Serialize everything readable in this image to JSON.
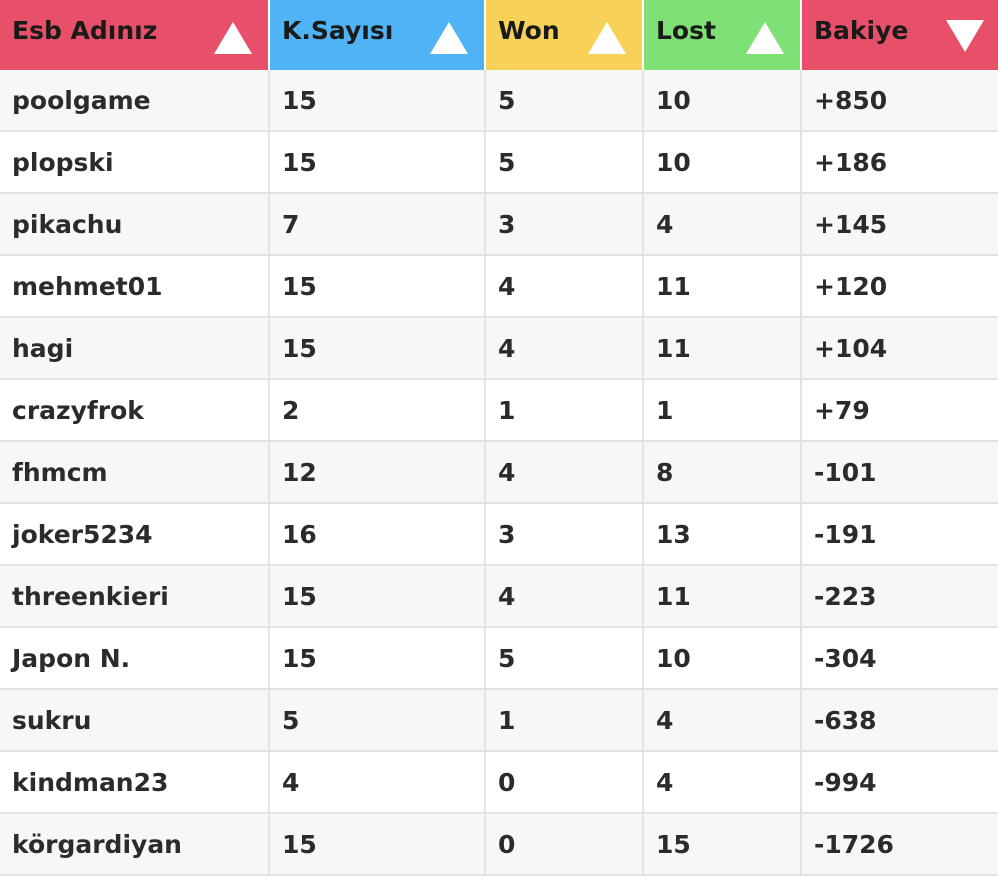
{
  "header": {
    "columns": [
      {
        "label": "Esb Adınız",
        "color": "#e8506a",
        "sort": "asc"
      },
      {
        "label": "K.Sayısı",
        "color": "#4fb3f6",
        "sort": "asc"
      },
      {
        "label": "Won",
        "color": "#f8d158",
        "sort": "asc"
      },
      {
        "label": "Lost",
        "color": "#7ee075",
        "sort": "asc"
      },
      {
        "label": "Bakiye",
        "color": "#e8506a",
        "sort": "desc"
      }
    ]
  },
  "rows": [
    [
      "poolgame",
      "15",
      "5",
      "10",
      "+850"
    ],
    [
      "plopski",
      "15",
      "5",
      "10",
      "+186"
    ],
    [
      "pikachu",
      "7",
      "3",
      "4",
      "+145"
    ],
    [
      "mehmet01",
      "15",
      "4",
      "11",
      "+120"
    ],
    [
      "hagi",
      "15",
      "4",
      "11",
      "+104"
    ],
    [
      "crazyfrok",
      "2",
      "1",
      "1",
      "+79"
    ],
    [
      "fhmcm",
      "12",
      "4",
      "8",
      "-101"
    ],
    [
      "joker5234",
      "16",
      "3",
      "13",
      "-191"
    ],
    [
      "threenkieri",
      "15",
      "4",
      "11",
      "-223"
    ],
    [
      "Japon N.",
      "15",
      "5",
      "10",
      "-304"
    ],
    [
      "sukru",
      "5",
      "1",
      "4",
      "-638"
    ],
    [
      "kindman23",
      "4",
      "0",
      "4",
      "-994"
    ],
    [
      "körgardiyan",
      "15",
      "0",
      "15",
      "-1726"
    ]
  ]
}
